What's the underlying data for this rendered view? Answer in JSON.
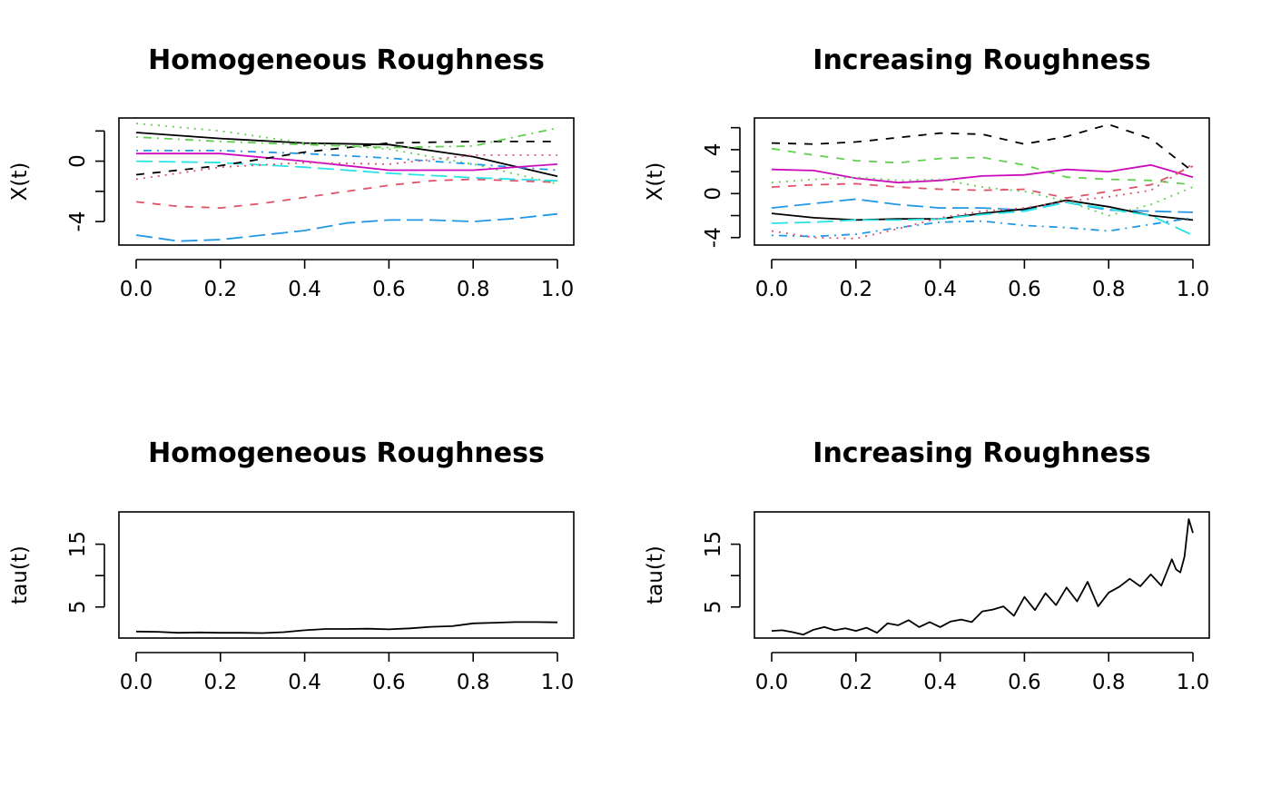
{
  "chart_data": [
    {
      "type": "line",
      "title": "Homogeneous Roughness",
      "xlabel": "",
      "ylabel": "X(t)",
      "xlim": [
        0,
        1
      ],
      "ylim": [
        -5.5,
        2.8
      ],
      "x_ticks": [
        0.0,
        0.2,
        0.4,
        0.6,
        0.8,
        1.0
      ],
      "x_tick_labels": [
        "0.0",
        "0.2",
        "0.4",
        "0.6",
        "0.8",
        "1.0"
      ],
      "y_ticks": [
        -4,
        -2,
        0,
        2
      ],
      "y_tick_labels": [
        "-4",
        "",
        "0",
        ""
      ],
      "series": [
        {
          "color": "#000000",
          "lty": "solid",
          "x": [
            0,
            0.2,
            0.4,
            0.6,
            0.8,
            1.0
          ],
          "y": [
            1.9,
            1.5,
            1.2,
            1.1,
            0.3,
            -1.0
          ]
        },
        {
          "color": "#DF536B",
          "lty": "dashed",
          "x": [
            0,
            0.1,
            0.2,
            0.3,
            0.4,
            0.5,
            0.6,
            0.7,
            0.8,
            0.9,
            1.0
          ],
          "y": [
            -2.7,
            -3.0,
            -3.1,
            -2.8,
            -2.4,
            -2.0,
            -1.6,
            -1.3,
            -1.2,
            -1.3,
            -1.4
          ]
        },
        {
          "color": "#61D04F",
          "lty": "dotted",
          "x": [
            0,
            0.2,
            0.4,
            0.6,
            0.8,
            1.0
          ],
          "y": [
            2.5,
            2.0,
            1.2,
            0.8,
            -0.2,
            -1.5
          ]
        },
        {
          "color": "#2297E6",
          "lty": "dashdot",
          "x": [
            0,
            0.2,
            0.4,
            0.6,
            0.8,
            1.0
          ],
          "y": [
            0.7,
            0.7,
            0.5,
            0.2,
            -0.2,
            -0.6
          ]
        },
        {
          "color": "#28E2E5",
          "lty": "longdash",
          "x": [
            0,
            0.2,
            0.4,
            0.6,
            0.8,
            1.0
          ],
          "y": [
            0.0,
            -0.1,
            -0.4,
            -0.8,
            -1.1,
            -1.3
          ]
        },
        {
          "color": "#CD0BBC",
          "lty": "solid",
          "x": [
            0,
            0.2,
            0.4,
            0.6,
            0.8,
            1.0
          ],
          "y": [
            0.5,
            0.5,
            0.0,
            -0.6,
            -0.6,
            -0.2
          ]
        },
        {
          "color": "#000000",
          "lty": "dashed",
          "x": [
            0,
            0.2,
            0.4,
            0.6,
            0.8,
            1.0
          ],
          "y": [
            -0.9,
            -0.3,
            0.6,
            1.2,
            1.3,
            1.3
          ]
        },
        {
          "color": "#DF536B",
          "lty": "dotted",
          "x": [
            0,
            0.2,
            0.4,
            0.6,
            0.8,
            1.0
          ],
          "y": [
            -1.2,
            -0.4,
            -0.1,
            -0.2,
            0.4,
            0.4
          ]
        },
        {
          "color": "#61D04F",
          "lty": "dashdot",
          "x": [
            0,
            0.2,
            0.4,
            0.6,
            0.8,
            1.0
          ],
          "y": [
            1.6,
            1.3,
            1.1,
            0.9,
            1.0,
            2.2
          ]
        },
        {
          "color": "#2297E6",
          "lty": "longdash",
          "x": [
            0,
            0.1,
            0.2,
            0.3,
            0.4,
            0.5,
            0.6,
            0.7,
            0.8,
            0.9,
            1.0
          ],
          "y": [
            -4.9,
            -5.3,
            -5.2,
            -4.9,
            -4.6,
            -4.1,
            -3.9,
            -3.9,
            -4.0,
            -3.8,
            -3.5
          ]
        }
      ]
    },
    {
      "type": "line",
      "title": "Increasing Roughness",
      "xlabel": "",
      "ylabel": "X(t)",
      "xlim": [
        0,
        1
      ],
      "ylim": [
        -4.6,
        6.8
      ],
      "x_ticks": [
        0.0,
        0.2,
        0.4,
        0.6,
        0.8,
        1.0
      ],
      "x_tick_labels": [
        "0.0",
        "0.2",
        "0.4",
        "0.6",
        "0.8",
        "1.0"
      ],
      "y_ticks": [
        -4,
        -2,
        0,
        2,
        4,
        6
      ],
      "y_tick_labels": [
        "-4",
        "",
        "0",
        "",
        "4",
        ""
      ],
      "series": [
        {
          "color": "#000000",
          "lty": "dashed",
          "x": [
            0,
            0.1,
            0.2,
            0.3,
            0.4,
            0.5,
            0.6,
            0.7,
            0.8,
            0.9,
            1.0
          ],
          "y": [
            4.6,
            4.5,
            4.7,
            5.1,
            5.5,
            5.4,
            4.5,
            5.2,
            6.3,
            5.0,
            2.0
          ]
        },
        {
          "color": "#61D04F",
          "lty": "dashed",
          "x": [
            0,
            0.1,
            0.2,
            0.3,
            0.4,
            0.5,
            0.6,
            0.7,
            0.8,
            0.9,
            1.0
          ],
          "y": [
            4.1,
            3.5,
            3.0,
            2.8,
            3.2,
            3.3,
            2.6,
            1.5,
            1.3,
            1.2,
            0.8
          ]
        },
        {
          "color": "#CD0BBC",
          "lty": "solid",
          "x": [
            0,
            0.1,
            0.2,
            0.3,
            0.4,
            0.5,
            0.6,
            0.7,
            0.8,
            0.9,
            1.0
          ],
          "y": [
            2.2,
            2.1,
            1.4,
            1.0,
            1.2,
            1.6,
            1.7,
            2.2,
            2.0,
            2.6,
            1.5
          ]
        },
        {
          "color": "#61D04F",
          "lty": "dotted",
          "x": [
            0,
            0.1,
            0.2,
            0.3,
            0.4,
            0.5,
            0.6,
            0.7,
            0.8,
            0.9,
            1.0
          ],
          "y": [
            1.0,
            1.3,
            1.5,
            1.2,
            1.3,
            0.6,
            0.2,
            -0.7,
            -2.0,
            -1.0,
            0.6
          ]
        },
        {
          "color": "#DF536B",
          "lty": "dashed",
          "x": [
            0,
            0.1,
            0.2,
            0.3,
            0.4,
            0.5,
            0.6,
            0.7,
            0.8,
            0.9,
            1.0
          ],
          "y": [
            0.6,
            0.8,
            0.9,
            0.6,
            0.4,
            0.3,
            0.4,
            -0.4,
            0.2,
            0.8,
            2.5
          ]
        },
        {
          "color": "#2297E6",
          "lty": "longdash",
          "x": [
            0,
            0.1,
            0.2,
            0.3,
            0.4,
            0.5,
            0.6,
            0.7,
            0.8,
            0.9,
            1.0
          ],
          "y": [
            -1.3,
            -0.9,
            -0.5,
            -1.0,
            -1.3,
            -1.3,
            -1.5,
            -0.8,
            -1.5,
            -1.6,
            -1.7
          ]
        },
        {
          "color": "#000000",
          "lty": "solid",
          "x": [
            0,
            0.1,
            0.2,
            0.3,
            0.4,
            0.5,
            0.6,
            0.7,
            0.8,
            0.9,
            1.0
          ],
          "y": [
            -1.8,
            -2.2,
            -2.4,
            -2.3,
            -2.3,
            -1.8,
            -1.4,
            -0.6,
            -1.2,
            -2.0,
            -2.4
          ]
        },
        {
          "color": "#28E2E5",
          "lty": "longdash",
          "x": [
            0,
            0.1,
            0.2,
            0.3,
            0.4,
            0.5,
            0.6,
            0.7,
            0.8,
            0.9,
            1.0
          ],
          "y": [
            -2.7,
            -2.6,
            -2.4,
            -2.4,
            -2.3,
            -1.9,
            -1.6,
            -0.8,
            -1.4,
            -2.0,
            -3.8
          ]
        },
        {
          "color": "#2297E6",
          "lty": "dashdot",
          "x": [
            0,
            0.1,
            0.2,
            0.3,
            0.4,
            0.5,
            0.6,
            0.7,
            0.8,
            0.9,
            1.0
          ],
          "y": [
            -3.8,
            -3.9,
            -3.7,
            -3.1,
            -2.6,
            -2.5,
            -2.9,
            -3.1,
            -3.4,
            -2.8,
            -2.2
          ]
        },
        {
          "color": "#DF536B",
          "lty": "dotted",
          "x": [
            0,
            0.1,
            0.2,
            0.3,
            0.4,
            0.5,
            0.6,
            0.7,
            0.8,
            0.9,
            1.0
          ],
          "y": [
            -3.4,
            -4.0,
            -4.1,
            -3.2,
            -2.2,
            -1.6,
            -1.3,
            -0.7,
            -0.3,
            0.3,
            2.7
          ]
        }
      ]
    },
    {
      "type": "line",
      "title": "Homogeneous Roughness",
      "xlabel": "",
      "ylabel": "tau(t)",
      "xlim": [
        0,
        1
      ],
      "ylim": [
        0.2,
        20.0
      ],
      "x_ticks": [
        0.0,
        0.2,
        0.4,
        0.6,
        0.8,
        1.0
      ],
      "x_tick_labels": [
        "0.0",
        "0.2",
        "0.4",
        "0.6",
        "0.8",
        "1.0"
      ],
      "y_ticks": [
        5,
        10,
        15
      ],
      "y_tick_labels": [
        "5",
        "",
        "15"
      ],
      "series": [
        {
          "color": "#000000",
          "lty": "solid",
          "x": [
            0,
            0.05,
            0.1,
            0.15,
            0.2,
            0.25,
            0.3,
            0.35,
            0.4,
            0.45,
            0.5,
            0.55,
            0.6,
            0.65,
            0.7,
            0.75,
            0.8,
            0.85,
            0.9,
            0.95,
            1.0
          ],
          "y": [
            1.1,
            1.05,
            0.9,
            0.95,
            0.9,
            0.9,
            0.85,
            1.0,
            1.3,
            1.5,
            1.5,
            1.55,
            1.45,
            1.6,
            1.85,
            1.95,
            2.4,
            2.5,
            2.6,
            2.6,
            2.55
          ]
        }
      ]
    },
    {
      "type": "line",
      "title": "Increasing Roughness",
      "xlabel": "",
      "ylabel": "tau(t)",
      "xlim": [
        0,
        1
      ],
      "ylim": [
        0.2,
        20.0
      ],
      "x_ticks": [
        0.0,
        0.2,
        0.4,
        0.6,
        0.8,
        1.0
      ],
      "x_tick_labels": [
        "0.0",
        "0.2",
        "0.4",
        "0.6",
        "0.8",
        "1.0"
      ],
      "y_ticks": [
        5,
        10,
        15
      ],
      "y_tick_labels": [
        "5",
        "",
        "15"
      ],
      "series": [
        {
          "color": "#000000",
          "lty": "solid",
          "x": [
            0,
            0.025,
            0.05,
            0.075,
            0.1,
            0.125,
            0.15,
            0.175,
            0.2,
            0.225,
            0.25,
            0.275,
            0.3,
            0.325,
            0.35,
            0.375,
            0.4,
            0.425,
            0.45,
            0.475,
            0.5,
            0.525,
            0.55,
            0.575,
            0.6,
            0.625,
            0.65,
            0.675,
            0.7,
            0.725,
            0.75,
            0.775,
            0.8,
            0.825,
            0.85,
            0.875,
            0.9,
            0.925,
            0.95,
            0.96,
            0.97,
            0.98,
            0.99,
            1.0
          ],
          "y": [
            1.2,
            1.3,
            1.0,
            0.6,
            1.4,
            1.8,
            1.3,
            1.6,
            1.2,
            1.7,
            0.9,
            2.4,
            2.1,
            2.9,
            1.8,
            2.6,
            1.8,
            2.7,
            3.0,
            2.6,
            4.3,
            4.6,
            5.1,
            3.6,
            6.6,
            4.5,
            7.2,
            5.3,
            8.1,
            5.9,
            9.0,
            5.1,
            7.3,
            8.2,
            9.5,
            8.3,
            10.2,
            8.4,
            12.6,
            11.0,
            10.5,
            13.0,
            19.0,
            16.8
          ]
        }
      ]
    }
  ]
}
